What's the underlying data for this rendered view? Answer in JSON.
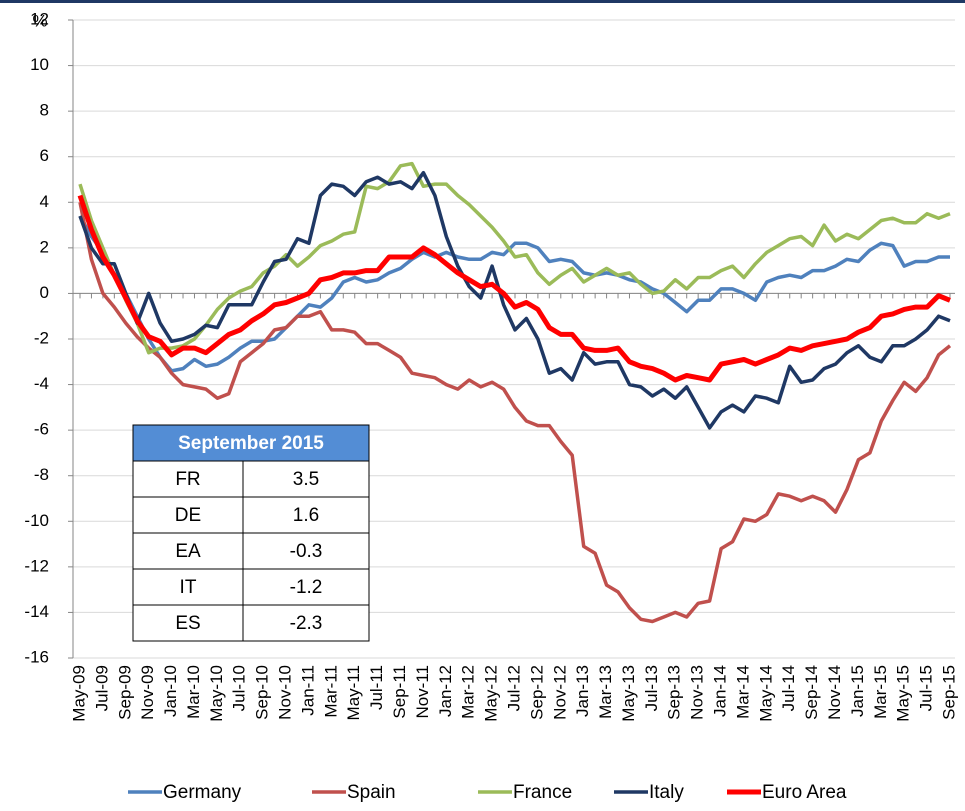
{
  "chart_data": {
    "type": "line",
    "y_label": "%",
    "categories": [
      "May-09",
      null,
      "Jul-09",
      null,
      "Sep-09",
      null,
      "Nov-09",
      null,
      "Jan-10",
      null,
      "Mar-10",
      null,
      "May-10",
      null,
      "Jul-10",
      null,
      "Sep-10",
      null,
      "Nov-10",
      null,
      "Jan-11",
      null,
      "Mar-11",
      null,
      "May-11",
      null,
      "Jul-11",
      null,
      "Sep-11",
      null,
      "Nov-11",
      null,
      "Jan-12",
      null,
      "Mar-12",
      null,
      "May-12",
      null,
      "Jul-12",
      null,
      "Sep-12",
      null,
      "Nov-12",
      null,
      "Jan-13",
      null,
      "Mar-13",
      null,
      "May-13",
      null,
      "Jul-13",
      null,
      "Sep-13",
      null,
      "Nov-13",
      null,
      "Jan-14",
      null,
      "Mar-14",
      null,
      "May-14",
      null,
      "Jul-14",
      null,
      "Sep-14",
      null,
      "Nov-14",
      null,
      "Jan-15",
      null,
      "Mar-15",
      null,
      "May-15",
      null,
      "Jul-15",
      null,
      "Sep-15"
    ],
    "series": [
      {
        "name": "Germany",
        "color": "#4f81bd",
        "values": [
          3.4,
          2.5,
          1.8,
          0.8,
          0.0,
          -1.0,
          -2.0,
          -2.8,
          -3.4,
          -3.3,
          -2.9,
          -3.2,
          -3.1,
          -2.8,
          -2.4,
          -2.1,
          -2.1,
          -2.0,
          -1.5,
          -1.0,
          -0.5,
          -0.6,
          -0.2,
          0.5,
          0.7,
          0.5,
          0.6,
          0.9,
          1.1,
          1.5,
          1.8,
          1.6,
          1.8,
          1.6,
          1.5,
          1.5,
          1.8,
          1.7,
          2.2,
          2.2,
          2.0,
          1.4,
          1.5,
          1.4,
          0.9,
          0.8,
          0.9,
          0.8,
          0.6,
          0.5,
          0.2,
          0.0,
          -0.4,
          -0.8,
          -0.3,
          -0.3,
          0.2,
          0.2,
          0.0,
          -0.3,
          0.5,
          0.7,
          0.8,
          0.7,
          1.0,
          1.0,
          1.2,
          1.5,
          1.4,
          1.9,
          2.2,
          2.1,
          1.2,
          1.4,
          1.4,
          1.6,
          1.6
        ]
      },
      {
        "name": "Spain",
        "color": "#c0504d",
        "values": [
          4.0,
          1.5,
          0.0,
          -0.6,
          -1.3,
          -1.9,
          -2.4,
          -2.8,
          -3.5,
          -4.0,
          -4.1,
          -4.2,
          -4.6,
          -4.4,
          -3.0,
          -2.6,
          -2.2,
          -1.6,
          -1.5,
          -1.0,
          -1.0,
          -0.8,
          -1.6,
          -1.6,
          -1.7,
          -2.2,
          -2.2,
          -2.5,
          -2.8,
          -3.5,
          -3.6,
          -3.7,
          -4.0,
          -4.2,
          -3.8,
          -4.1,
          -3.9,
          -4.2,
          -5.0,
          -5.6,
          -5.8,
          -5.8,
          -6.5,
          -7.1,
          -11.1,
          -11.4,
          -12.8,
          -13.1,
          -13.8,
          -14.3,
          -14.4,
          -14.2,
          -14.0,
          -14.2,
          -13.6,
          -13.5,
          -11.2,
          -10.9,
          -9.9,
          -10.0,
          -9.7,
          -8.8,
          -8.9,
          -9.1,
          -8.9,
          -9.1,
          -9.6,
          -8.6,
          -7.3,
          -7.0,
          -5.6,
          -4.7,
          -3.9,
          -4.3,
          -3.7,
          -2.7,
          -2.3
        ]
      },
      {
        "name": "France",
        "color": "#9bbb59",
        "values": [
          4.8,
          3.2,
          2.0,
          0.8,
          -0.3,
          -1.3,
          -2.6,
          -2.4,
          -2.4,
          -2.3,
          -2.0,
          -1.4,
          -0.7,
          -0.2,
          0.1,
          0.3,
          0.9,
          1.2,
          1.7,
          1.2,
          1.6,
          2.1,
          2.3,
          2.6,
          2.7,
          4.7,
          4.6,
          4.9,
          5.6,
          5.7,
          4.7,
          4.8,
          4.8,
          4.3,
          3.9,
          3.4,
          2.9,
          2.3,
          1.6,
          1.7,
          0.9,
          0.4,
          0.8,
          1.1,
          0.5,
          0.8,
          1.1,
          0.8,
          0.9,
          0.4,
          0.0,
          0.1,
          0.6,
          0.2,
          0.7,
          0.7,
          1.0,
          1.2,
          0.7,
          1.3,
          1.8,
          2.1,
          2.4,
          2.5,
          2.1,
          3.0,
          2.3,
          2.6,
          2.4,
          2.8,
          3.2,
          3.3,
          3.1,
          3.1,
          3.5,
          3.3,
          3.5
        ]
      },
      {
        "name": "Italy",
        "color": "#1f3864",
        "values": [
          3.4,
          2.0,
          1.3,
          1.3,
          0.0,
          -1.3,
          0.0,
          -1.3,
          -2.1,
          -2.0,
          -1.8,
          -1.4,
          -1.5,
          -0.5,
          -0.5,
          -0.5,
          0.5,
          1.4,
          1.5,
          2.4,
          2.2,
          4.3,
          4.8,
          4.7,
          4.3,
          4.9,
          5.1,
          4.8,
          4.9,
          4.6,
          5.3,
          4.3,
          2.5,
          1.2,
          0.3,
          -0.2,
          1.2,
          -0.5,
          -1.6,
          -1.1,
          -2.0,
          -3.5,
          -3.3,
          -3.8,
          -2.6,
          -3.1,
          -3.0,
          -3.0,
          -4.0,
          -4.1,
          -4.5,
          -4.2,
          -4.6,
          -4.1,
          -5.0,
          -5.9,
          -5.2,
          -4.9,
          -5.2,
          -4.5,
          -4.6,
          -4.8,
          -3.2,
          -3.9,
          -3.8,
          -3.3,
          -3.1,
          -2.6,
          -2.3,
          -2.8,
          -3.0,
          -2.3,
          -2.3,
          -2.0,
          -1.6,
          -1.0,
          -1.2
        ]
      },
      {
        "name": "Euro Area",
        "color": "#ff0000",
        "values": [
          4.3,
          2.8,
          1.6,
          0.8,
          -0.2,
          -1.2,
          -1.9,
          -2.1,
          -2.7,
          -2.4,
          -2.4,
          -2.6,
          -2.2,
          -1.8,
          -1.6,
          -1.2,
          -0.9,
          -0.5,
          -0.4,
          -0.2,
          0.0,
          0.6,
          0.7,
          0.9,
          0.9,
          1.0,
          1.0,
          1.6,
          1.6,
          1.6,
          2.0,
          1.7,
          1.3,
          0.9,
          0.6,
          0.3,
          0.4,
          0.0,
          -0.6,
          -0.4,
          -0.7,
          -1.5,
          -1.8,
          -1.8,
          -2.4,
          -2.5,
          -2.5,
          -2.4,
          -3.0,
          -3.2,
          -3.3,
          -3.5,
          -3.8,
          -3.6,
          -3.7,
          -3.8,
          -3.1,
          -3.0,
          -2.9,
          -3.1,
          -2.9,
          -2.7,
          -2.4,
          -2.5,
          -2.3,
          -2.2,
          -2.1,
          -2.0,
          -1.7,
          -1.5,
          -1.0,
          -0.9,
          -0.7,
          -0.6,
          -0.6,
          -0.1,
          -0.3
        ]
      }
    ],
    "ylim": [
      -16,
      12
    ],
    "yticks": [
      -16,
      -14,
      -12,
      -10,
      -8,
      -6,
      -4,
      -2,
      0,
      2,
      4,
      6,
      8,
      10,
      12
    ],
    "grid": true,
    "legend": "bottom",
    "table": {
      "header": "September 2015",
      "rows": [
        [
          "FR",
          3.5
        ],
        [
          "DE",
          1.6
        ],
        [
          "EA",
          -0.3
        ],
        [
          "IT",
          -1.2
        ],
        [
          "ES",
          -2.3
        ]
      ]
    }
  }
}
